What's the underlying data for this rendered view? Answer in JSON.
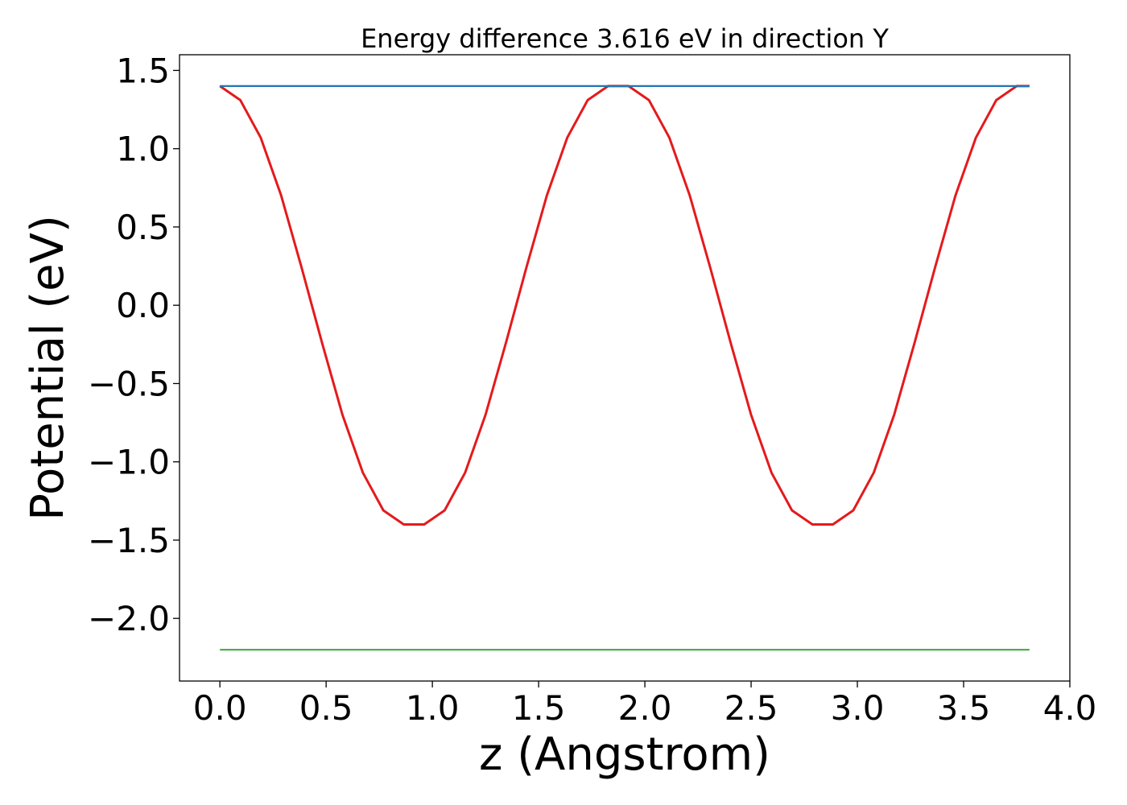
{
  "chart_data": {
    "type": "line",
    "title": "Energy difference 3.616 eV in direction Y",
    "xlabel": "z (Angstrom)",
    "ylabel": "Potential (eV)",
    "xlim": [
      -0.19,
      4.0
    ],
    "ylim": [
      -2.4,
      1.6
    ],
    "x_ticks": [
      0.0,
      0.5,
      1.0,
      1.5,
      2.0,
      2.5,
      3.0,
      3.5,
      4.0
    ],
    "x_tick_labels": [
      "0.0",
      "0.5",
      "1.0",
      "1.5",
      "2.0",
      "2.5",
      "3.0",
      "3.5",
      "4.0"
    ],
    "y_ticks": [
      1.5,
      1.0,
      0.5,
      0.0,
      -0.5,
      -1.0,
      -1.5,
      -2.0
    ],
    "y_tick_labels": [
      "1.5",
      "1.0",
      "0.5",
      "0.0",
      "−0.5",
      "−1.0",
      "−1.5",
      "−2.0"
    ],
    "grid": false,
    "series": [
      {
        "color": "#e41a1c",
        "x": [
          0.0,
          0.0962,
          0.1923,
          0.2885,
          0.3846,
          0.4808,
          0.5769,
          0.6731,
          0.7692,
          0.8654,
          0.9615,
          1.0577,
          1.1538,
          1.25,
          1.3462,
          1.4423,
          1.5385,
          1.6346,
          1.7308,
          1.8269,
          1.9231,
          2.0192,
          2.1154,
          2.2115,
          2.3077,
          2.4038,
          2.5,
          2.5962,
          2.6923,
          2.7885,
          2.8846,
          2.9808,
          3.0769,
          3.1731,
          3.2692,
          3.3654,
          3.4615,
          3.5577,
          3.6538,
          3.75,
          3.81
        ],
        "y": [
          1.4,
          1.31,
          1.07,
          0.7,
          0.24,
          -0.24,
          -0.7,
          -1.07,
          -1.31,
          -1.4,
          -1.4,
          -1.31,
          -1.07,
          -0.7,
          -0.24,
          0.24,
          0.7,
          1.07,
          1.31,
          1.4,
          1.4,
          1.31,
          1.07,
          0.7,
          0.24,
          -0.24,
          -0.7,
          -1.07,
          -1.31,
          -1.4,
          -1.4,
          -1.31,
          -1.07,
          -0.7,
          -0.24,
          0.24,
          0.7,
          1.07,
          1.31,
          1.4,
          1.4
        ]
      },
      {
        "color": "#1f77b4",
        "x": [
          0.0,
          3.81
        ],
        "y": [
          1.4,
          1.4
        ]
      },
      {
        "color": "#4daf4a",
        "x": [
          0.0,
          3.81
        ],
        "y": [
          -2.2,
          -2.2
        ]
      }
    ]
  }
}
